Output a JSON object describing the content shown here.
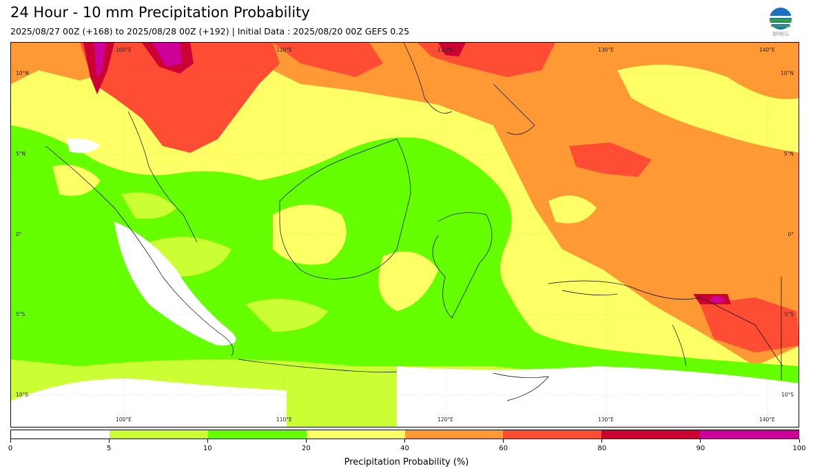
{
  "header": {
    "title": "24 Hour - 10 mm Precipitation Probability",
    "subtitle": "2025/08/27 00Z (+168) to 2025/08/28 00Z (+192) | Initial Data : 2025/08/20 00Z GEFS 0.25",
    "logo_text": "BMKG"
  },
  "map": {
    "lon_labels": [
      "100°E",
      "110°E",
      "120°E",
      "130°E",
      "140°E"
    ],
    "lat_labels": [
      "10°N",
      "5°N",
      "0°",
      "5°S",
      "10°S"
    ]
  },
  "colorbar": {
    "label": "Precipitation Probability (%)",
    "ticks": [
      "0",
      "5",
      "10",
      "20",
      "40",
      "60",
      "80",
      "90",
      "100"
    ],
    "colors": [
      "#ffffff",
      "#ccff33",
      "#66ff00",
      "#ffff66",
      "#ff9933",
      "#ff4d33",
      "#cc0033",
      "#cc0099"
    ]
  }
}
